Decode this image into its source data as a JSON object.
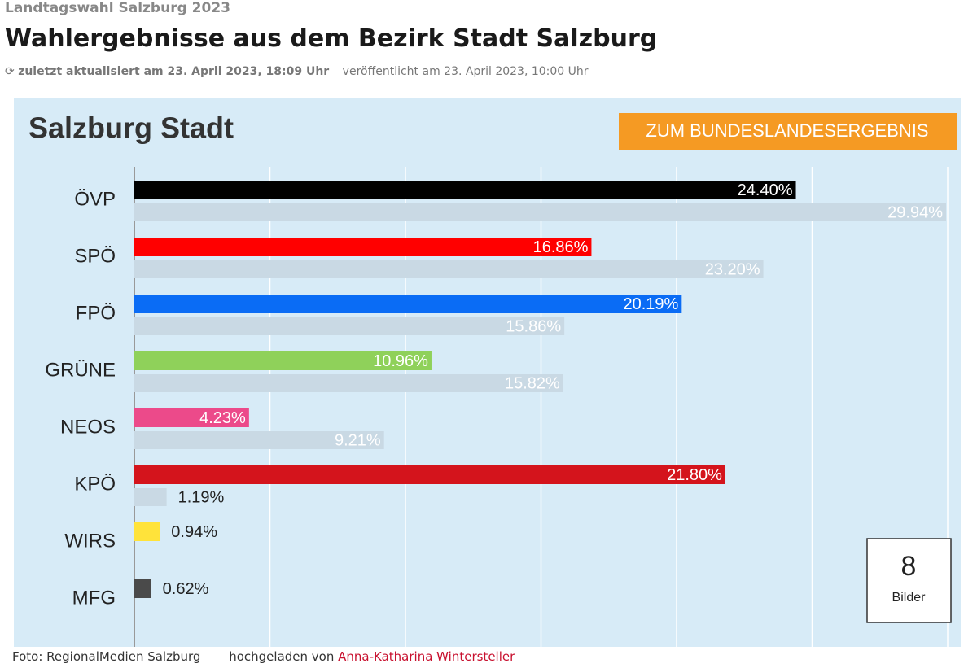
{
  "header": {
    "kicker": "Landtagswahl Salzburg 2023",
    "title": "Wahlergebnisse aus dem Bezirk Stadt Salzburg",
    "updated": "zuletzt aktualisiert am 23. April 2023, 18:09 Uhr",
    "published": "veröffentlicht am 23. April 2023, 10:00 Uhr"
  },
  "chart_data": {
    "type": "bar",
    "orientation": "horizontal",
    "title": "Salzburg Stadt",
    "button": "ZUM BUNDESLANDESERGEBNIS",
    "categories": [
      "ÖVP",
      "SPÖ",
      "FPÖ",
      "GRÜNE",
      "NEOS",
      "KPÖ",
      "WIRS",
      "MFG"
    ],
    "series": [
      {
        "colors": [
          "#000000",
          "#ff0000",
          "#0a6cf5",
          "#8fd15a",
          "#ec4a8a",
          "#d4141c",
          "#ffe33a",
          "#4a4a4a"
        ],
        "values": [
          24.4,
          16.86,
          20.19,
          10.96,
          4.23,
          21.8,
          0.94,
          0.62
        ],
        "value_labels": [
          "24.40%",
          "16.86%",
          "20.19%",
          "10.96%",
          "4.23%",
          "21.80%",
          "0.94%",
          "0.62%"
        ]
      },
      {
        "color": "#c9d9e4",
        "values": [
          29.94,
          23.2,
          15.86,
          15.82,
          9.21,
          1.19,
          null,
          null
        ],
        "value_labels": [
          "29.94%",
          "23.20%",
          "15.86%",
          "15.82%",
          "9.21%",
          "1.19%",
          null,
          null
        ]
      }
    ],
    "xlim": [
      0,
      30
    ],
    "xticks": [
      0,
      5,
      10,
      15,
      20,
      25,
      30
    ],
    "grid": true
  },
  "gallery": {
    "count": "8",
    "label": "Bilder"
  },
  "footer": {
    "credit": "Foto: RegionalMedien Salzburg",
    "uploaded": "hochgeladen von",
    "author": "Anna-Katharina Wintersteller"
  }
}
